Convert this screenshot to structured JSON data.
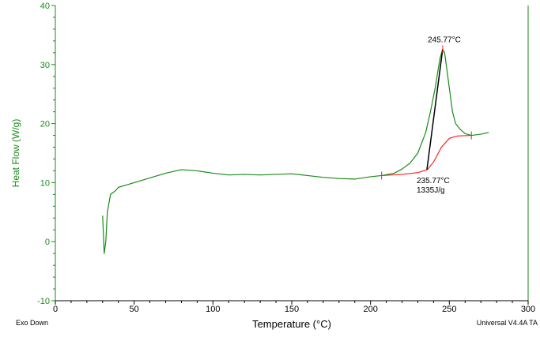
{
  "chart_data": {
    "type": "line",
    "xlabel": "Temperature (°C)",
    "ylabel": "Heat Flow (W/g)",
    "xlim": [
      0,
      300
    ],
    "ylim": [
      -10,
      40
    ],
    "xticks": [
      0,
      50,
      100,
      150,
      200,
      250,
      300
    ],
    "yticks": [
      -10,
      0,
      10,
      20,
      30,
      40
    ],
    "footer_left": "Exo Down",
    "footer_right": "Universal V4.4A TA",
    "colors": {
      "curve": "#1a8a1a",
      "baseline": "#ff2020",
      "tangent": "#000000",
      "axis_y": "#1a8a1a"
    },
    "series": [
      {
        "name": "heat-flow",
        "x": [
          30,
          31,
          32,
          33,
          35,
          38,
          40,
          45,
          50,
          60,
          70,
          80,
          90,
          100,
          110,
          120,
          130,
          140,
          150,
          160,
          170,
          180,
          190,
          200,
          207,
          215,
          220,
          225,
          230,
          235,
          238,
          241,
          244,
          245.77,
          247,
          248,
          250,
          252,
          254,
          257,
          260,
          264,
          270,
          275
        ],
        "y": [
          4.4,
          -2,
          0,
          5,
          8,
          8.6,
          9.2,
          9.6,
          10,
          10.8,
          11.6,
          12.2,
          12,
          11.6,
          11.3,
          11.4,
          11.3,
          11.4,
          11.5,
          11.2,
          10.9,
          10.7,
          10.6,
          11,
          11.2,
          11.6,
          12.3,
          13.3,
          15,
          18.5,
          22,
          26,
          31,
          32.6,
          32,
          30,
          26,
          22,
          20,
          19,
          18.3,
          18,
          18.2,
          18.5
        ]
      },
      {
        "name": "baseline",
        "x": [
          207,
          220,
          230,
          236,
          240,
          245,
          250,
          255,
          264
        ],
        "y": [
          11.2,
          11.4,
          11.7,
          12.2,
          13.5,
          16,
          17.5,
          17.9,
          18
        ]
      }
    ],
    "tangent": {
      "x": [
        235.77,
        245.77
      ],
      "y": [
        12.2,
        32.6
      ]
    },
    "annotations": [
      {
        "text": "245.77°C",
        "x": 245.77,
        "y": 32.6,
        "pos": "above"
      },
      {
        "text": "235.77°C",
        "x": 235.77,
        "y": 12.2,
        "pos": "below"
      },
      {
        "text": "1335J/g",
        "x": 235.77,
        "y": 12.2,
        "pos": "below2"
      }
    ],
    "markers": [
      {
        "x": 207,
        "y": 11.2
      },
      {
        "x": 264,
        "y": 18
      },
      {
        "x": 245.77,
        "y": 32.6
      }
    ]
  }
}
